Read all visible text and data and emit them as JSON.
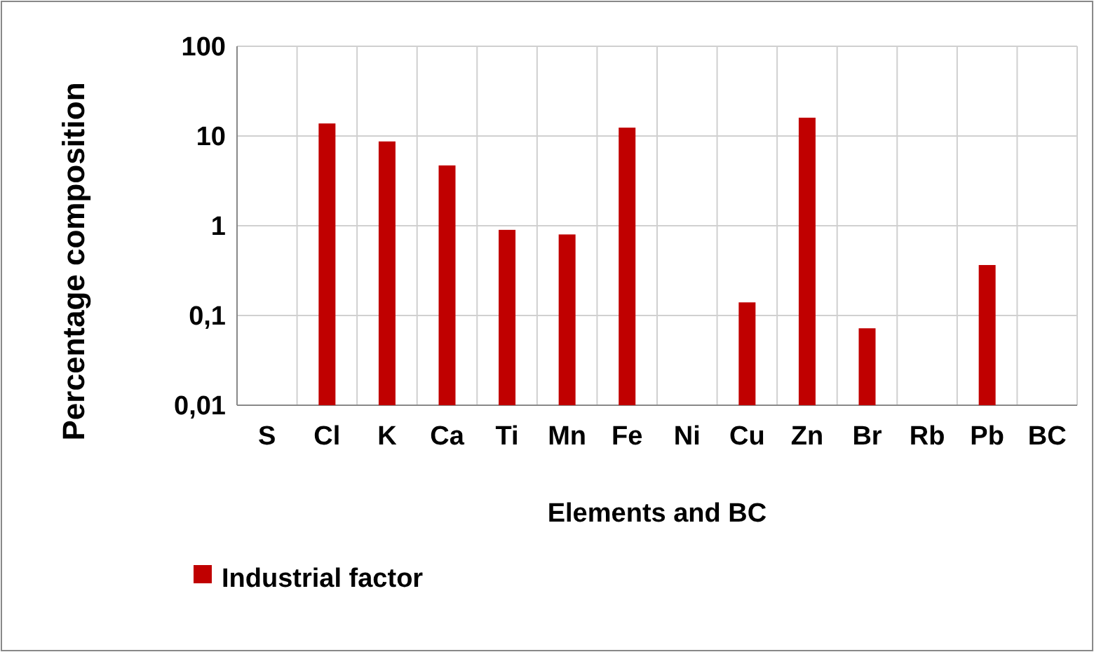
{
  "chart_data": {
    "type": "bar",
    "xlabel": "Elements and BC",
    "ylabel": "Percentage composition",
    "categories": [
      "S",
      "Cl",
      "K",
      "Ca",
      "Ti",
      "Mn",
      "Fe",
      "Ni",
      "Cu",
      "Zn",
      "Br",
      "Rb",
      "Pb",
      "BC"
    ],
    "series": [
      {
        "name": "Industrial factor",
        "color": "#c00000",
        "values": [
          null,
          13.8,
          8.7,
          4.7,
          0.9,
          0.8,
          12.4,
          null,
          0.14,
          16,
          0.072,
          null,
          0.365,
          null
        ]
      }
    ],
    "log": true,
    "ylim": [
      0.01,
      100
    ],
    "yticks": [
      {
        "value": 0.01,
        "label": "0,01"
      },
      {
        "value": 0.1,
        "label": "0,1"
      },
      1,
      10,
      100
    ],
    "grid": true,
    "legend": "bottom left"
  }
}
